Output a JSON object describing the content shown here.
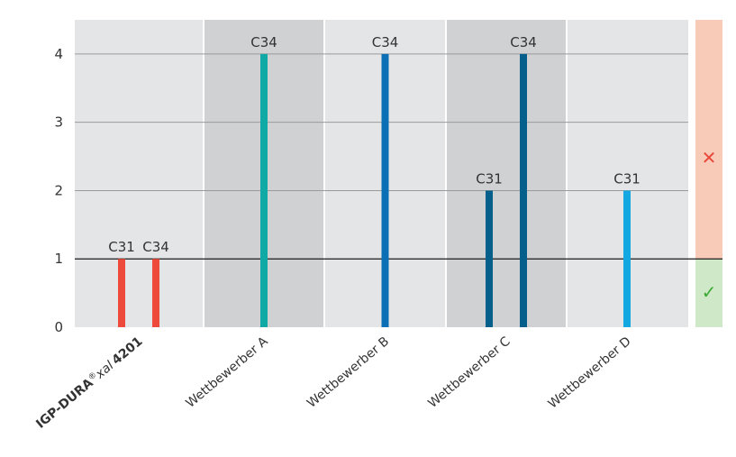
{
  "chart_data": {
    "type": "bar",
    "categories": [
      "IGP-DURA®xal 4201",
      "Wettbewerber A",
      "Wettbewerber B",
      "Wettbewerber C",
      "Wettbewerber D"
    ],
    "category_parts": [
      {
        "bold1": "IGP-DURA",
        "reg": "®",
        "italic": "xal",
        "bold2": "4201"
      },
      {
        "text": "Wettbewerber A"
      },
      {
        "text": "Wettbewerber B"
      },
      {
        "text": "Wettbewerber C"
      },
      {
        "text": "Wettbewerber D"
      }
    ],
    "bars": [
      {
        "category": 0,
        "label": "C31",
        "value": 1,
        "color": "#ee4a3c"
      },
      {
        "category": 0,
        "label": "C34",
        "value": 1,
        "color": "#ee4a3c"
      },
      {
        "category": 1,
        "label": "C34",
        "value": 4,
        "color": "#11a9a6"
      },
      {
        "category": 2,
        "label": "C34",
        "value": 4,
        "color": "#0a6fb4"
      },
      {
        "category": 3,
        "label": "C31",
        "value": 2,
        "color": "#04608a"
      },
      {
        "category": 3,
        "label": "C34",
        "value": 4,
        "color": "#04608a"
      },
      {
        "category": 4,
        "label": "C31",
        "value": 2,
        "color": "#14a8e2"
      }
    ],
    "y_ticks": [
      0,
      1,
      2,
      3,
      4
    ],
    "ylim": [
      0,
      4.5
    ],
    "threshold": 1,
    "band_colors": [
      "#e4e5e6",
      "#d0d1d3",
      "#e4e5e6",
      "#d0d1d3",
      "#e4e5e6"
    ],
    "side_indicator": {
      "above": {
        "symbol": "✕",
        "color": "#f8cbb8",
        "symbol_color": "#e9483b"
      },
      "below": {
        "symbol": "✓",
        "color": "#cfe8c7",
        "symbol_color": "#3aaa35"
      }
    },
    "grid": true,
    "legend": "none"
  }
}
